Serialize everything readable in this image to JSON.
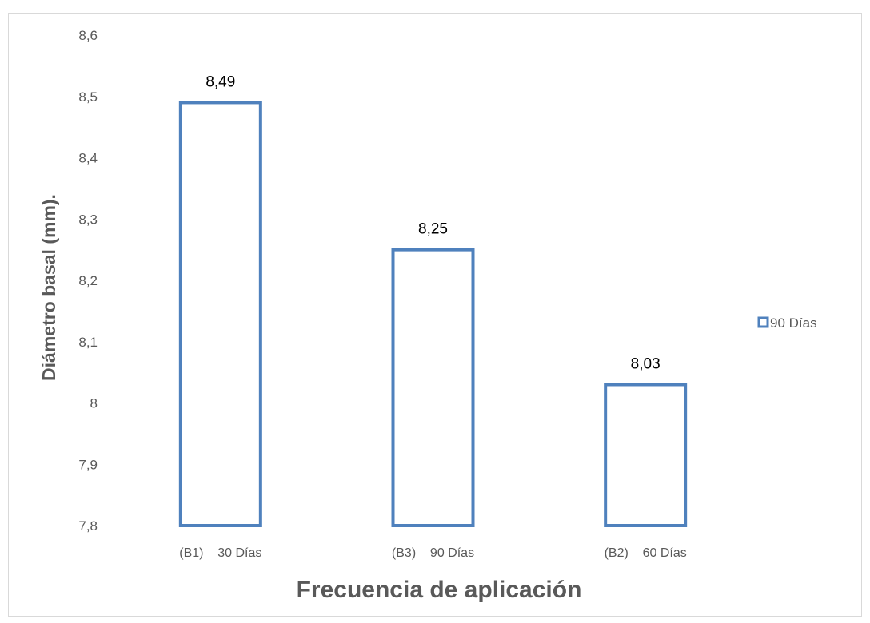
{
  "chart_data": {
    "type": "bar",
    "categories": [
      "(B1)    30 Días",
      "(B3)    90 Días",
      "(B2)    60 Días"
    ],
    "series": [
      {
        "name": "90 Días",
        "values": [
          8.49,
          8.25,
          8.03
        ],
        "color": "#4f81bd"
      }
    ],
    "data_labels": [
      "8,49",
      "8,25",
      "8,03"
    ],
    "y_ticks": [
      "7,8",
      "7,9",
      "8",
      "8,1",
      "8,2",
      "8,3",
      "8,4",
      "8,5",
      "8,6"
    ],
    "ylim": [
      7.8,
      8.6
    ],
    "xlabel": "Frecuencia de aplicación",
    "ylabel": "Diámetro basal (mm).",
    "legend_position": "right",
    "grid": false,
    "bar_style": "outline"
  }
}
